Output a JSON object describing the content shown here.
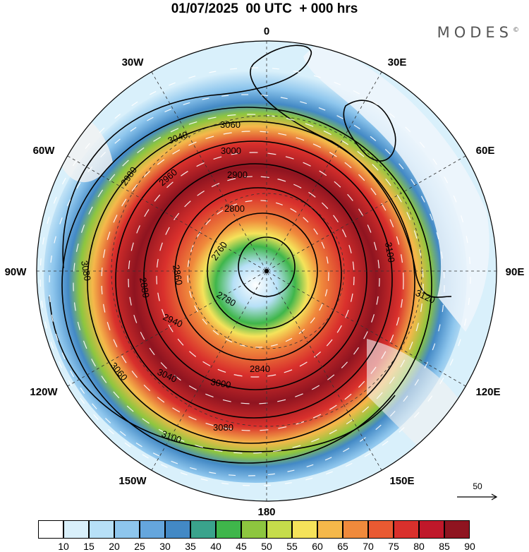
{
  "header": {
    "title": "01/07/2025  00 UTC  + 000 hrs",
    "brand": "MODES",
    "brand_mark": "©"
  },
  "map": {
    "projection": "south-polar-stereographic",
    "longitude_labels": [
      "0",
      "30E",
      "60E",
      "90E",
      "120E",
      "150E",
      "180",
      "150W",
      "120W",
      "90W",
      "60W",
      "30W"
    ],
    "contour_labels": [
      "3060",
      "3040",
      "3000",
      "2980",
      "2960",
      "2900",
      "2800",
      "2760",
      "2780",
      "2860",
      "2880",
      "3100",
      "3120",
      "3080",
      "2940",
      "3060",
      "3040",
      "3000",
      "2840",
      "3080",
      "3100"
    ],
    "reference_vector_label": "50"
  },
  "colorbar": {
    "ticks": [
      "10",
      "15",
      "20",
      "25",
      "30",
      "35",
      "40",
      "45",
      "50",
      "55",
      "60",
      "65",
      "70",
      "75",
      "80",
      "85",
      "90"
    ],
    "colors": [
      "#ffffff",
      "#d9f0fb",
      "#b7e0f7",
      "#8ec6ed",
      "#65a6dd",
      "#4389c5",
      "#3aa38c",
      "#3fb64b",
      "#8dc63f",
      "#c6dc4b",
      "#f5e35a",
      "#f5b84a",
      "#f08a3c",
      "#e95a32",
      "#d9302c",
      "#c0182a",
      "#8f1420"
    ]
  }
}
